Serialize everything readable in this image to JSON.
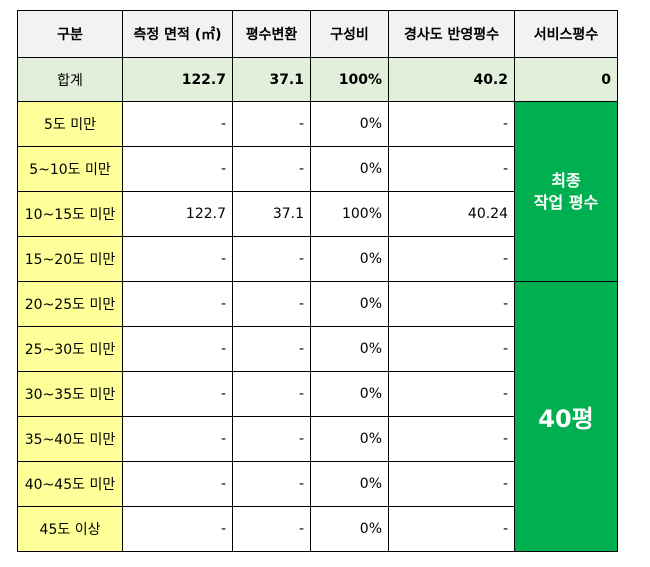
{
  "headers": [
    "구분",
    "측정 면적 (㎡)",
    "평수변환",
    "구성비",
    "경사도 반영평수",
    "서비스평수"
  ],
  "total": {
    "label": "합계",
    "area": "122.7",
    "pyeong": "37.1",
    "ratio": "100%",
    "slope_pyeong": "40.2",
    "service": "0"
  },
  "rows": [
    {
      "range": "5도 미만",
      "area": "-",
      "pyeong": "-",
      "ratio": "0%",
      "slope_pyeong": "-"
    },
    {
      "range": "5~10도 미만",
      "area": "-",
      "pyeong": "-",
      "ratio": "0%",
      "slope_pyeong": "-"
    },
    {
      "range": "10~15도 미만",
      "area": "122.7",
      "pyeong": "37.1",
      "ratio": "100%",
      "slope_pyeong": "40.24"
    },
    {
      "range": "15~20도 미만",
      "area": "-",
      "pyeong": "-",
      "ratio": "0%",
      "slope_pyeong": "-"
    },
    {
      "range": "20~25도 미만",
      "area": "-",
      "pyeong": "-",
      "ratio": "0%",
      "slope_pyeong": "-"
    },
    {
      "range": "25~30도 미만",
      "area": "-",
      "pyeong": "-",
      "ratio": "0%",
      "slope_pyeong": "-"
    },
    {
      "range": "30~35도 미만",
      "area": "-",
      "pyeong": "-",
      "ratio": "0%",
      "slope_pyeong": "-"
    },
    {
      "range": "35~40도 미만",
      "area": "-",
      "pyeong": "-",
      "ratio": "0%",
      "slope_pyeong": "-"
    },
    {
      "range": "40~45도 미만",
      "area": "-",
      "pyeong": "-",
      "ratio": "0%",
      "slope_pyeong": "-"
    },
    {
      "range": "45도 이상",
      "area": "-",
      "pyeong": "-",
      "ratio": "0%",
      "slope_pyeong": "-"
    }
  ],
  "side": {
    "final_line1": "최종",
    "final_line2": "작업 평수",
    "result": "40평"
  },
  "colors": {
    "range_bg": "#ffff99",
    "total_bg": "#e2efda",
    "header_bg": "#f2f2f2",
    "green": "#00b050"
  }
}
